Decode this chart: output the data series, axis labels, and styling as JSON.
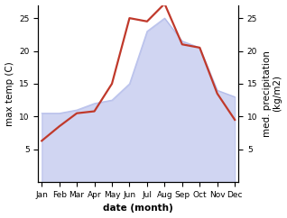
{
  "months": [
    "Jan",
    "Feb",
    "Mar",
    "Apr",
    "May",
    "Jun",
    "Jul",
    "Aug",
    "Sep",
    "Oct",
    "Nov",
    "Dec"
  ],
  "month_positions": [
    0,
    1,
    2,
    3,
    4,
    5,
    6,
    7,
    8,
    9,
    10,
    11
  ],
  "temp_max": [
    6.3,
    8.5,
    10.5,
    10.8,
    15.0,
    25.0,
    24.5,
    27.2,
    21.0,
    20.5,
    13.5,
    9.5
  ],
  "precipitation": [
    10.5,
    10.5,
    11.0,
    12.0,
    12.5,
    15.0,
    23.0,
    25.0,
    21.5,
    20.5,
    14.0,
    13.0
  ],
  "temp_color": "#c0392b",
  "precip_color": "#aab4e8",
  "precip_fill_alpha": 0.55,
  "temp_linewidth": 1.6,
  "background_color": "#ffffff",
  "ylabel_left": "max temp (C)",
  "ylabel_right": "med. precipitation\n(kg/m2)",
  "xlabel": "date (month)",
  "ylim_left": [
    0,
    27
  ],
  "ylim_right": [
    0,
    27
  ],
  "yticks_left": [
    5,
    10,
    15,
    20,
    25
  ],
  "yticks_right": [
    5,
    10,
    15,
    20,
    25
  ],
  "label_fontsize": 7.5,
  "tick_fontsize": 6.5
}
